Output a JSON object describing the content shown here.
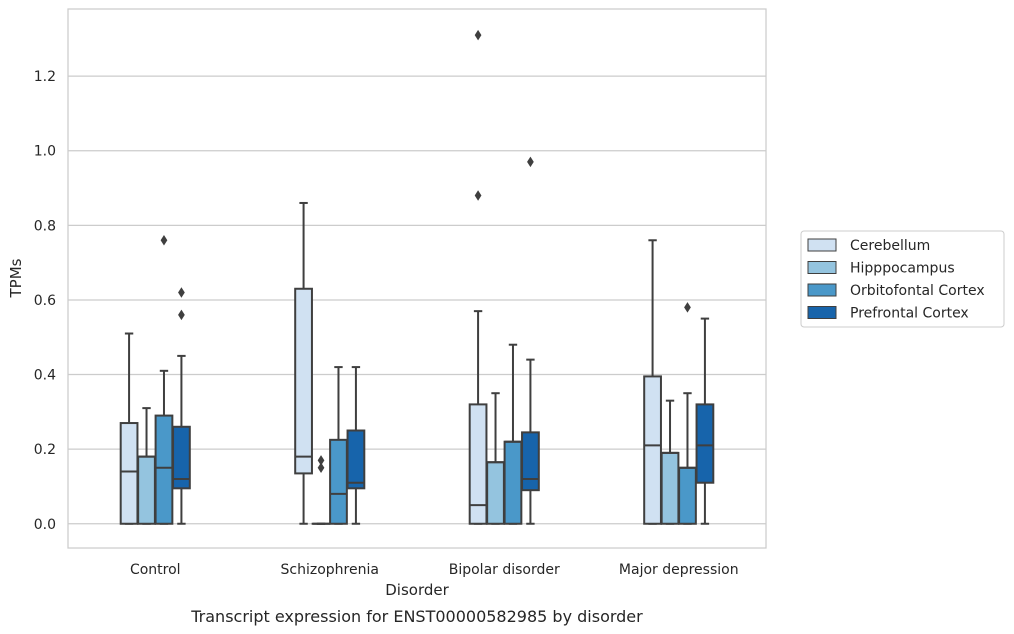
{
  "caption": "Transcript expression for ENST00000582985 by disorder",
  "chart_data": {
    "type": "boxplot",
    "xlabel": "Disorder",
    "ylabel": "TPMs",
    "ylim": [
      -0.065,
      1.38
    ],
    "yticks": [
      0.0,
      0.2,
      0.4,
      0.6,
      0.8,
      1.0,
      1.2
    ],
    "ytick_labels": [
      "0.0",
      "0.2",
      "0.4",
      "0.6",
      "0.8",
      "1.0",
      "1.2"
    ],
    "categories": [
      "Control",
      "Schizophrenia",
      "Bipolar disorder",
      "Major depression"
    ],
    "grid": "horizontal",
    "legend_position": "right",
    "series": [
      {
        "name": "Cerebellum",
        "color": "#d0e1f2",
        "boxes": [
          {
            "whislo": 0.0,
            "q1": 0.0,
            "med": 0.14,
            "q3": 0.27,
            "whishi": 0.51,
            "fliers": []
          },
          {
            "whislo": 0.0,
            "q1": 0.135,
            "med": 0.18,
            "q3": 0.63,
            "whishi": 0.86,
            "fliers": []
          },
          {
            "whislo": 0.0,
            "q1": 0.0,
            "med": 0.05,
            "q3": 0.32,
            "whishi": 0.57,
            "fliers": [
              0.88,
              1.31
            ]
          },
          {
            "whislo": 0.0,
            "q1": 0.0,
            "med": 0.21,
            "q3": 0.395,
            "whishi": 0.76,
            "fliers": []
          }
        ]
      },
      {
        "name": "Hipppocampus",
        "color": "#94c4df",
        "boxes": [
          {
            "whislo": 0.0,
            "q1": 0.0,
            "med": 0.18,
            "q3": 0.18,
            "whishi": 0.31,
            "fliers": []
          },
          {
            "whislo": 0.0,
            "q1": 0.0,
            "med": 0.0,
            "q3": 0.0,
            "whishi": 0.0,
            "fliers": [
              0.15,
              0.17
            ]
          },
          {
            "whislo": 0.0,
            "q1": 0.0,
            "med": 0.165,
            "q3": 0.165,
            "whishi": 0.35,
            "fliers": []
          },
          {
            "whislo": 0.0,
            "q1": 0.0,
            "med": 0.19,
            "q3": 0.19,
            "whishi": 0.33,
            "fliers": []
          }
        ]
      },
      {
        "name": "Orbitofontal Cortex",
        "color": "#4a98c9",
        "boxes": [
          {
            "whislo": 0.0,
            "q1": 0.0,
            "med": 0.15,
            "q3": 0.29,
            "whishi": 0.41,
            "fliers": [
              0.76
            ]
          },
          {
            "whislo": 0.0,
            "q1": 0.0,
            "med": 0.08,
            "q3": 0.225,
            "whishi": 0.42,
            "fliers": []
          },
          {
            "whislo": 0.0,
            "q1": 0.0,
            "med": 0.22,
            "q3": 0.22,
            "whishi": 0.48,
            "fliers": []
          },
          {
            "whislo": 0.0,
            "q1": 0.0,
            "med": 0.15,
            "q3": 0.15,
            "whishi": 0.35,
            "fliers": [
              0.58
            ]
          }
        ]
      },
      {
        "name": "Prefrontal Cortex",
        "color": "#1764ab",
        "boxes": [
          {
            "whislo": 0.0,
            "q1": 0.095,
            "med": 0.12,
            "q3": 0.26,
            "whishi": 0.45,
            "fliers": [
              0.56,
              0.62
            ]
          },
          {
            "whislo": 0.0,
            "q1": 0.095,
            "med": 0.11,
            "q3": 0.25,
            "whishi": 0.42,
            "fliers": []
          },
          {
            "whislo": 0.0,
            "q1": 0.09,
            "med": 0.12,
            "q3": 0.245,
            "whishi": 0.44,
            "fliers": [
              0.97
            ]
          },
          {
            "whislo": 0.0,
            "q1": 0.11,
            "med": 0.21,
            "q3": 0.32,
            "whishi": 0.55,
            "fliers": []
          }
        ]
      }
    ]
  }
}
